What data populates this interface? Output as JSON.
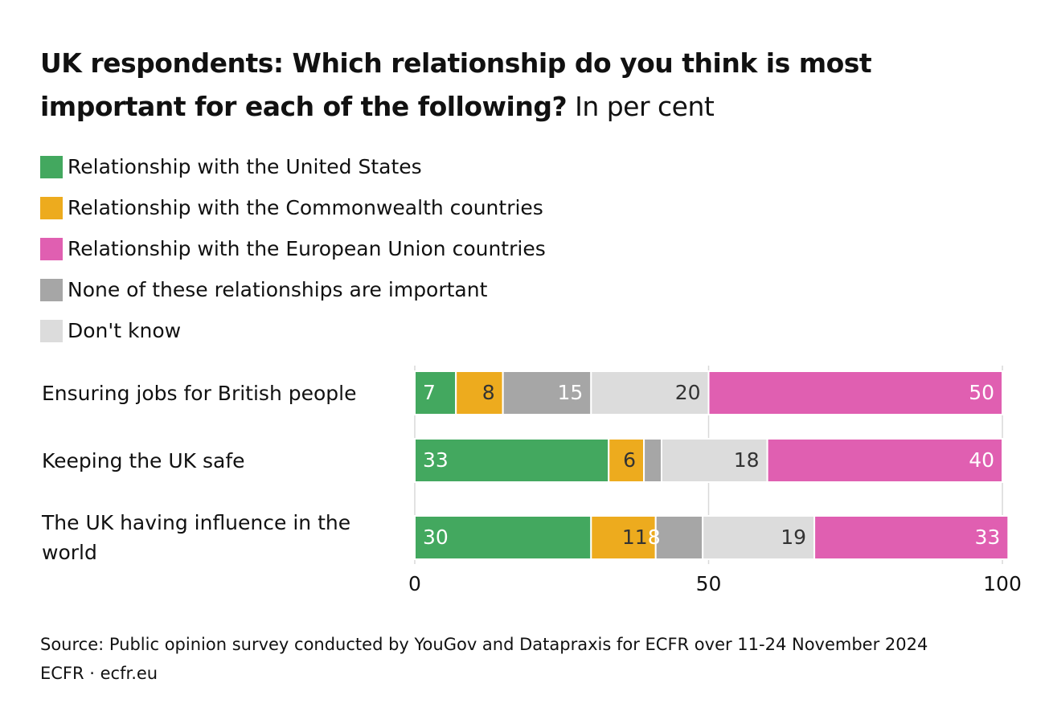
{
  "chart_data": {
    "type": "stacked-bar-horizontal",
    "title": "UK respondents: Which relationship do you think is most important for each of the following?",
    "subtitle": "In per cent",
    "categories": [
      "Ensuring jobs for British people",
      "Keeping the UK safe",
      "The UK having influence in the world"
    ],
    "series": [
      {
        "name": "Relationship with the United States",
        "color": "#43a85f",
        "values": [
          7,
          33,
          30
        ]
      },
      {
        "name": "Relationship with the Commonwealth countries",
        "color": "#edab1e",
        "values": [
          8,
          6,
          11
        ]
      },
      {
        "name": "Relationship with the European Union countries",
        "color": "#e05fb1",
        "values": [
          50,
          40,
          33
        ]
      },
      {
        "name": "None of these relationships are important",
        "color": "#a6a6a6",
        "values": [
          15,
          3,
          8
        ]
      },
      {
        "name": "Don't know",
        "color": "#dcdcdc",
        "values": [
          20,
          18,
          19
        ]
      }
    ],
    "stack_order": [
      0,
      1,
      3,
      4,
      2
    ],
    "xlim": [
      0,
      100
    ],
    "xticks": [
      0,
      50,
      100
    ],
    "grid": true,
    "source": "Source: Public opinion survey conducted by YouGov and Datapraxis for ECFR over 11-24 November 2024",
    "credit": "ECFR · ecfr.eu"
  }
}
